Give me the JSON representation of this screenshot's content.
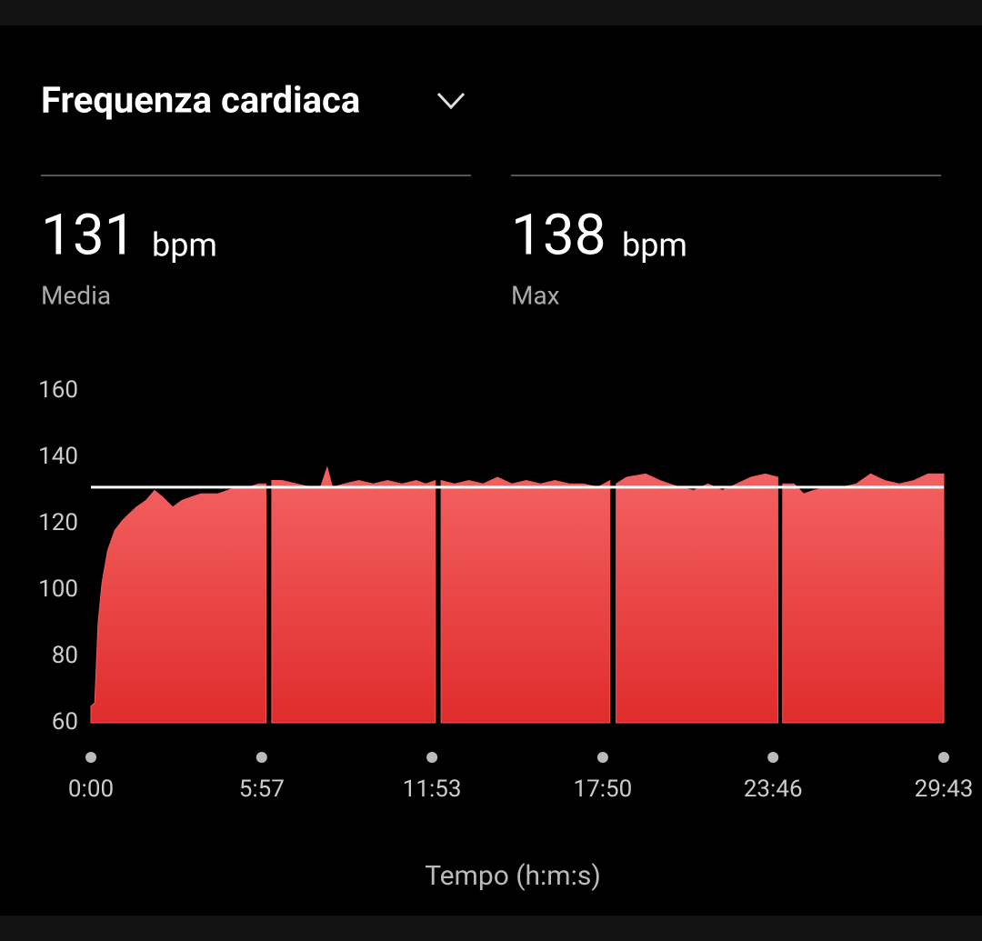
{
  "header": {
    "title": "Frequenza cardiaca"
  },
  "stats": [
    {
      "value": 131,
      "unit": "bpm",
      "label": "Media"
    },
    {
      "value": 138,
      "unit": "bpm",
      "label": "Max"
    }
  ],
  "chart_data": {
    "type": "area",
    "x_label": "Tempo (h:m:s)",
    "x": [
      0,
      8,
      15,
      23,
      35,
      50,
      66,
      80,
      95,
      115,
      133,
      150,
      171,
      190,
      209,
      230,
      250,
      266,
      285,
      304,
      330,
      350,
      366,
      370,
      378,
      400,
      430,
      460,
      480,
      494,
      505,
      530,
      560,
      590,
      620,
      650,
      680,
      700,
      720,
      724,
      732,
      760,
      790,
      820,
      850,
      880,
      910,
      940,
      970,
      1000,
      1030,
      1060,
      1085,
      1090,
      1098,
      1120,
      1160,
      1190,
      1230,
      1260,
      1290,
      1320,
      1350,
      1380,
      1410,
      1436,
      1440,
      1446,
      1470,
      1490,
      1510,
      1540,
      1570,
      1600,
      1630,
      1660,
      1690,
      1720,
      1750,
      1783
    ],
    "series": [
      {
        "name": "Frequenza cardiaca",
        "color": "#f05a5a",
        "values": [
          65,
          66,
          90,
          102,
          112,
          118,
          121,
          123,
          125,
          127,
          130,
          128,
          125,
          127,
          128,
          129,
          129,
          129,
          130,
          131,
          131,
          132,
          132,
          null,
          133,
          133,
          132,
          131,
          131,
          137,
          131,
          132,
          133,
          132,
          133,
          132,
          133,
          132,
          133,
          null,
          133,
          132,
          133,
          132,
          134,
          132,
          133,
          132,
          133,
          132,
          132,
          131,
          133,
          null,
          132,
          134,
          135,
          133,
          131,
          130,
          132,
          130,
          132,
          134,
          135,
          134,
          null,
          132,
          132,
          129,
          130,
          131,
          131,
          132,
          135,
          133,
          132,
          133,
          135,
          135
        ]
      }
    ],
    "mean_line": 131,
    "xlim": [
      0,
      1783
    ],
    "xticks": [
      {
        "value": 0,
        "label": "0:00"
      },
      {
        "value": 357,
        "label": "5:57"
      },
      {
        "value": 713,
        "label": "11:53"
      },
      {
        "value": 1070,
        "label": "17:50"
      },
      {
        "value": 1426,
        "label": "23:46"
      },
      {
        "value": 1783,
        "label": "29:43"
      }
    ],
    "ylim": [
      60,
      160
    ],
    "yticks": [
      60,
      80,
      100,
      120,
      140,
      160
    ]
  }
}
